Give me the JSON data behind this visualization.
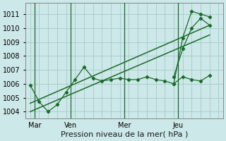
{
  "bg_color": "#cce8e8",
  "grid_color": "#a8c8c8",
  "line_color": "#1a6b2a",
  "ylim": [
    1003.5,
    1011.8
  ],
  "yticks": [
    1004,
    1005,
    1006,
    1007,
    1008,
    1009,
    1010,
    1011
  ],
  "xlabel": "Pression niveau de la mer( hPa )",
  "day_labels": [
    "Mar",
    "Ven",
    "Mer",
    "Jeu"
  ],
  "day_positions": [
    0.5,
    4.5,
    10.5,
    16.5
  ],
  "vline_positions": [
    0.5,
    4.5,
    10.5,
    16.5
  ],
  "xlim": [
    -0.5,
    21.5
  ],
  "n_xgrid": 22,
  "jagged_x": [
    0,
    1,
    2,
    3,
    4,
    5,
    6,
    7,
    8,
    9,
    10,
    11,
    12,
    13,
    14,
    15,
    16,
    17,
    18,
    19,
    20
  ],
  "jagged_y": [
    1005.9,
    1004.7,
    1004.0,
    1004.5,
    1005.4,
    1006.3,
    1007.2,
    1006.4,
    1006.2,
    1006.3,
    1006.4,
    1006.3,
    1006.3,
    1006.5,
    1006.3,
    1006.2,
    1006.0,
    1006.5,
    1006.3,
    1006.2,
    1006.6
  ],
  "upper_trend_x": [
    0,
    20
  ],
  "upper_trend_y": [
    1004.6,
    1010.2
  ],
  "lower_trend_x": [
    0,
    20
  ],
  "lower_trend_y": [
    1004.0,
    1009.5
  ],
  "spike_x": [
    16,
    17,
    18,
    19,
    20
  ],
  "spike_y": [
    1006.0,
    1009.3,
    1011.2,
    1011.0,
    1010.8
  ],
  "spike2_x": [
    16,
    17,
    18,
    19,
    20
  ],
  "spike2_y": [
    1006.5,
    1008.5,
    1010.0,
    1010.7,
    1010.2
  ],
  "ylabel_fontsize": 7,
  "xlabel_fontsize": 8
}
